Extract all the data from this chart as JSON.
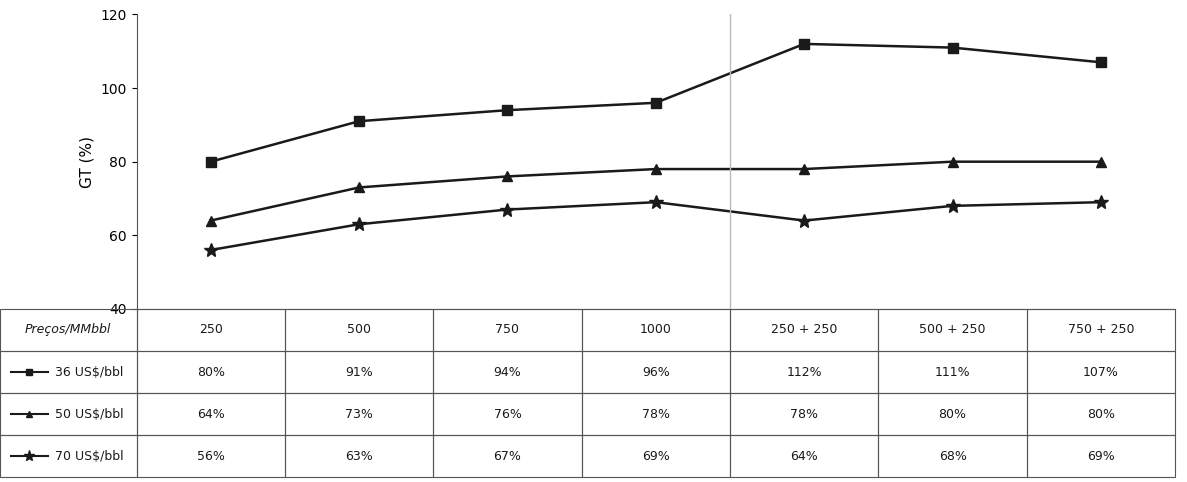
{
  "x_labels": [
    "250",
    "500",
    "750",
    "1000",
    "250 + 250",
    "500 + 250",
    "750 + 250"
  ],
  "x_positions": [
    0,
    1,
    2,
    3,
    4,
    5,
    6
  ],
  "series": [
    {
      "label": "36 US$/bbl",
      "values": [
        80,
        91,
        94,
        96,
        112,
        111,
        107
      ],
      "marker": "s",
      "color": "#1a1a1a",
      "linewidth": 1.8,
      "markersize": 7
    },
    {
      "label": "50 US$/bbl",
      "values": [
        64,
        73,
        76,
        78,
        78,
        80,
        80
      ],
      "marker": "^",
      "color": "#1a1a1a",
      "linewidth": 1.8,
      "markersize": 7
    },
    {
      "label": "70 US$/bbl",
      "values": [
        56,
        63,
        67,
        69,
        64,
        68,
        69
      ],
      "marker": "*",
      "color": "#1a1a1a",
      "linewidth": 1.8,
      "markersize": 10
    }
  ],
  "ylabel": "GT (%)",
  "ylim": [
    40,
    120
  ],
  "yticks": [
    40,
    60,
    80,
    100,
    120
  ],
  "vline_x": 3.5,
  "header_label": "Preços/MMbbl",
  "table_values": [
    [
      "80%",
      "91%",
      "94%",
      "96%",
      "112%",
      "111%",
      "107%"
    ],
    [
      "64%",
      "73%",
      "76%",
      "78%",
      "78%",
      "80%",
      "80%"
    ],
    [
      "56%",
      "63%",
      "67%",
      "69%",
      "64%",
      "68%",
      "69%"
    ]
  ],
  "legend_labels": [
    "36 US$/bbl",
    "50 US$/bbl",
    "70 US$/bbl"
  ],
  "legend_markers": [
    "s",
    "^",
    "*"
  ],
  "legend_markersizes": [
    6,
    6,
    9
  ],
  "background_color": "#ffffff"
}
